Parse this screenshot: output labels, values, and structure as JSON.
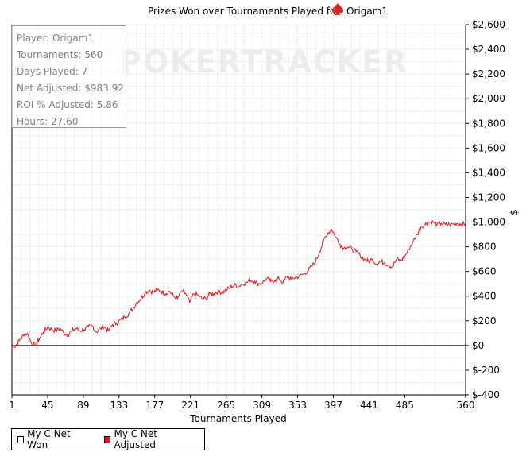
{
  "chart_data": {
    "type": "line",
    "title_prefix": "Prizes Won over Tournaments Played for",
    "title_player": "Origam1",
    "xlabel": "Tournaments Played",
    "ylabel": "$",
    "xlim": [
      1,
      560
    ],
    "ylim": [
      -400,
      2600
    ],
    "x_ticks": [
      1,
      45,
      89,
      133,
      177,
      221,
      265,
      309,
      353,
      397,
      441,
      485,
      560
    ],
    "y_ticks": [
      2600,
      2400,
      2200,
      2000,
      1800,
      1600,
      1400,
      1200,
      1000,
      800,
      600,
      400,
      200,
      0,
      -200,
      -400
    ],
    "y_tick_labels": [
      "$2,600",
      "$2,400",
      "$2,200",
      "$2,000",
      "$1,800",
      "$1,600",
      "$1,400",
      "$1,200",
      "$1,000",
      "$800",
      "$600",
      "$400",
      "$200",
      "$0",
      "$-200",
      "$-400"
    ],
    "grid": true,
    "legend_position": "bottom-left",
    "series": [
      {
        "name": "My C Net Won",
        "color": "#ffffff",
        "visible": false,
        "values": []
      },
      {
        "name": "My C Net Adjusted",
        "color": "#e8141a",
        "x": [
          1,
          5,
          10,
          15,
          20,
          25,
          30,
          35,
          40,
          45,
          50,
          55,
          60,
          65,
          70,
          75,
          80,
          85,
          90,
          95,
          100,
          105,
          110,
          115,
          120,
          125,
          130,
          135,
          140,
          145,
          150,
          155,
          160,
          165,
          170,
          175,
          180,
          185,
          190,
          195,
          200,
          205,
          210,
          215,
          220,
          225,
          230,
          235,
          240,
          245,
          250,
          255,
          260,
          265,
          270,
          275,
          280,
          285,
          290,
          295,
          300,
          305,
          310,
          315,
          320,
          325,
          330,
          335,
          340,
          345,
          350,
          355,
          360,
          365,
          370,
          375,
          380,
          385,
          390,
          395,
          400,
          405,
          410,
          415,
          420,
          425,
          430,
          435,
          440,
          445,
          450,
          455,
          460,
          465,
          470,
          475,
          480,
          485,
          490,
          495,
          500,
          505,
          510,
          515,
          520,
          525,
          530,
          535,
          540,
          545,
          550,
          555,
          560
        ],
        "values": [
          0,
          -10,
          40,
          80,
          100,
          20,
          0,
          60,
          110,
          150,
          130,
          120,
          140,
          100,
          90,
          120,
          140,
          120,
          130,
          150,
          160,
          110,
          140,
          150,
          120,
          170,
          180,
          210,
          230,
          260,
          300,
          350,
          380,
          430,
          450,
          430,
          450,
          440,
          420,
          440,
          400,
          380,
          440,
          420,
          350,
          420,
          410,
          380,
          380,
          420,
          420,
          440,
          430,
          450,
          470,
          490,
          480,
          500,
          510,
          530,
          520,
          500,
          510,
          540,
          520,
          530,
          540,
          510,
          560,
          540,
          550,
          560,
          580,
          600,
          640,
          680,
          760,
          850,
          910,
          940,
          880,
          820,
          790,
          800,
          780,
          760,
          730,
          700,
          680,
          700,
          660,
          680,
          670,
          650,
          640,
          700,
          690,
          720,
          780,
          840,
          900,
          960,
          980,
          1000,
          1000,
          980,
          990,
          980,
          980,
          985,
          990,
          983,
          983
        ]
      }
    ]
  },
  "legend": {
    "items": [
      {
        "label": "My C Net Won",
        "color": "#ffffff"
      },
      {
        "label": "My C Net Adjusted",
        "color": "#e8141a"
      }
    ]
  },
  "info_box": {
    "player": "Player: Origam1",
    "tournaments": "Tournaments: 560",
    "days_played": "Days Played: 7",
    "net_adjusted": "Net Adjusted: $983.92",
    "roi": "ROI % Adjusted: 5.86",
    "hours": "Hours: 27.60"
  },
  "watermark": "POKERTRACKER",
  "colors": {
    "line": "#e8141a",
    "grid": "#e8e8e8",
    "spade_icon": "#d8252a"
  }
}
